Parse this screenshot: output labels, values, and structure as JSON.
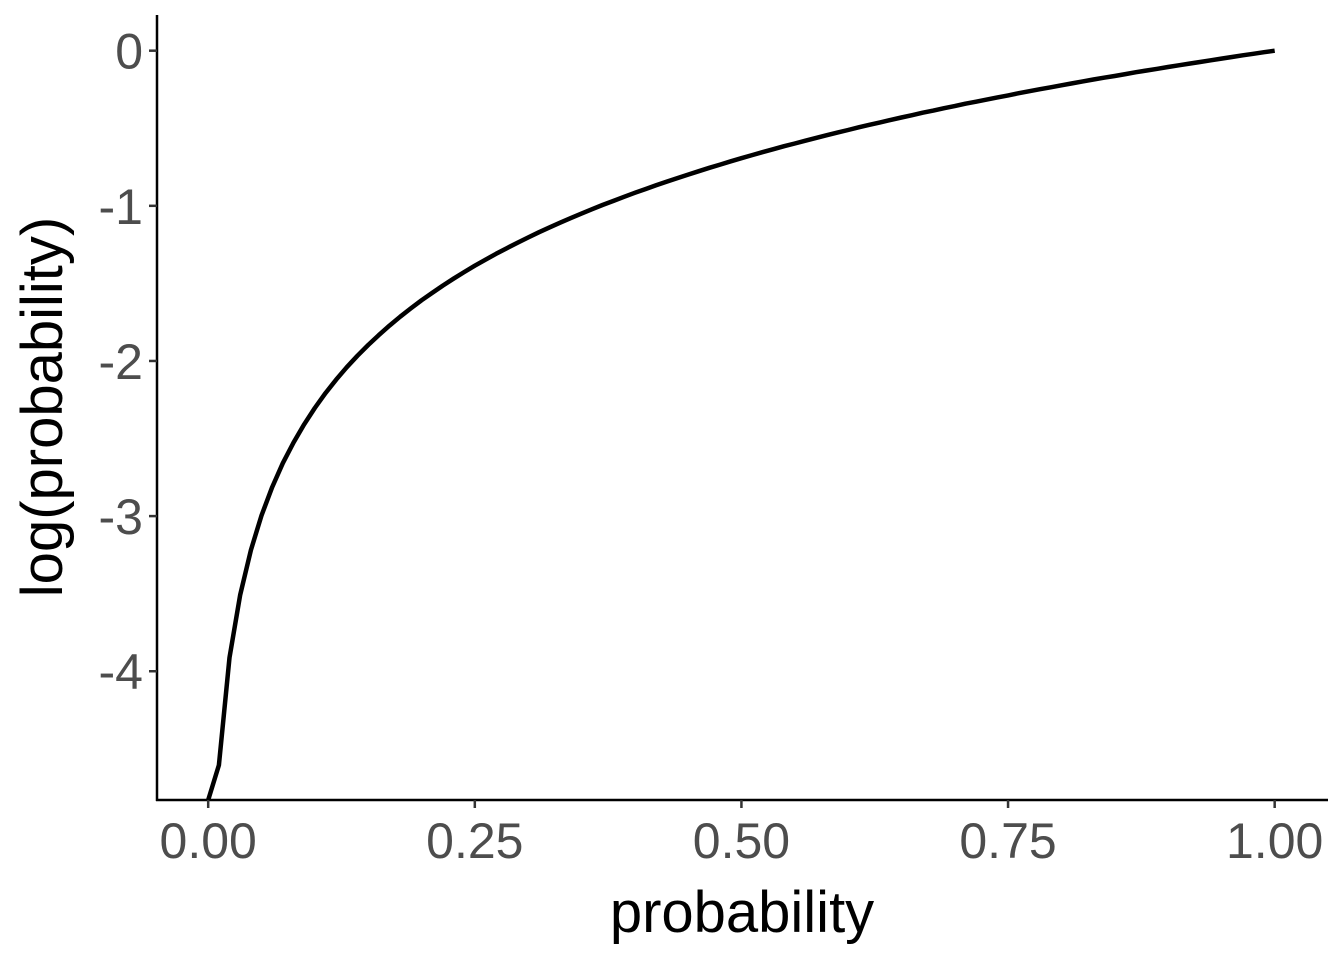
{
  "chart_data": {
    "type": "line",
    "title": "",
    "xlabel": "probability",
    "ylabel": "log(probability)",
    "xlim": [
      -0.048,
      1.05
    ],
    "ylim": [
      -4.83,
      0.23
    ],
    "grid": false,
    "legend": "none",
    "line_color": "#000000",
    "x_ticks": [
      0,
      0.25,
      0.5,
      0.75,
      1
    ],
    "x_tick_labels": [
      "0.00",
      "0.25",
      "0.50",
      "0.75",
      "1.00"
    ],
    "y_ticks": [
      0,
      -1,
      -2,
      -3,
      -4
    ],
    "y_tick_labels": [
      "0",
      "-1",
      "-2",
      "-3",
      "-4"
    ],
    "series": [
      {
        "x": [
          0,
          0.01,
          0.02,
          0.03,
          0.04,
          0.05,
          0.06,
          0.07,
          0.08,
          0.09,
          0.1,
          0.11,
          0.12,
          0.13,
          0.14,
          0.15,
          0.16,
          0.17,
          0.18,
          0.19,
          0.2,
          0.21,
          0.22,
          0.23,
          0.24,
          0.25,
          0.26,
          0.27,
          0.28,
          0.29,
          0.3,
          0.31,
          0.32,
          0.33,
          0.34,
          0.35,
          0.36,
          0.37,
          0.38,
          0.39,
          0.4,
          0.41,
          0.42,
          0.43,
          0.44,
          0.45,
          0.46,
          0.47,
          0.48,
          0.49,
          0.5,
          0.51,
          0.52,
          0.53,
          0.54,
          0.55,
          0.56,
          0.57,
          0.58,
          0.59,
          0.6,
          0.61,
          0.62,
          0.63,
          0.64,
          0.65,
          0.66,
          0.67,
          0.68,
          0.69,
          0.7,
          0.71,
          0.72,
          0.73,
          0.74,
          0.75,
          0.76,
          0.77,
          0.78,
          0.79,
          0.8,
          0.81,
          0.82,
          0.83,
          0.84,
          0.85,
          0.86,
          0.87,
          0.88,
          0.89,
          0.9,
          0.91,
          0.92,
          0.93,
          0.94,
          0.95,
          0.96,
          0.97,
          0.98,
          0.99,
          1
        ],
        "y": [
          "-Inf",
          -4.605,
          -3.912,
          -3.507,
          -3.219,
          -2.996,
          -2.813,
          -2.659,
          -2.526,
          -2.408,
          -2.303,
          -2.207,
          -2.12,
          -2.04,
          -1.966,
          -1.897,
          -1.833,
          -1.772,
          -1.715,
          -1.661,
          -1.609,
          -1.561,
          -1.514,
          -1.47,
          -1.427,
          -1.386,
          -1.347,
          -1.309,
          -1.273,
          -1.238,
          -1.204,
          -1.171,
          -1.139,
          -1.109,
          -1.079,
          -1.05,
          -1.022,
          -0.994,
          -0.968,
          -0.942,
          -0.916,
          -0.892,
          -0.868,
          -0.844,
          -0.821,
          -0.799,
          -0.777,
          -0.755,
          -0.734,
          -0.713,
          -0.693,
          -0.673,
          -0.654,
          -0.635,
          -0.616,
          -0.598,
          -0.58,
          -0.562,
          -0.545,
          -0.528,
          -0.511,
          -0.494,
          -0.478,
          -0.462,
          -0.446,
          -0.431,
          -0.416,
          -0.4,
          -0.386,
          -0.371,
          -0.357,
          -0.342,
          -0.329,
          -0.315,
          -0.301,
          -0.288,
          -0.274,
          -0.261,
          -0.248,
          -0.236,
          -0.223,
          -0.211,
          -0.198,
          -0.186,
          -0.174,
          -0.163,
          -0.151,
          -0.139,
          -0.128,
          -0.117,
          -0.105,
          -0.094,
          -0.083,
          -0.073,
          -0.062,
          -0.051,
          -0.041,
          -0.03,
          -0.02,
          -0.01,
          0
        ]
      }
    ]
  }
}
